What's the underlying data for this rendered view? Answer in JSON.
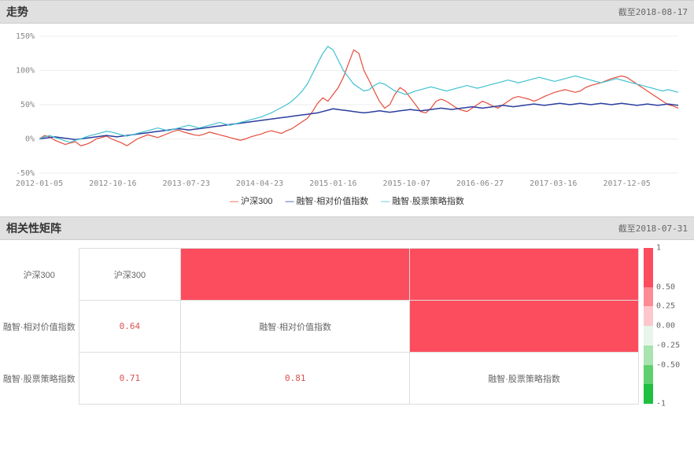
{
  "trend": {
    "title": "走势",
    "date_label": "截至2018-08-17",
    "ylim": [
      -50,
      150
    ],
    "ytick_step": 50,
    "yticks": [
      "-50%",
      "0%",
      "50%",
      "100%",
      "150%"
    ],
    "xticks": [
      "2012-01-05",
      "2012-10-16",
      "2013-07-23",
      "2014-04-23",
      "2015-01-16",
      "2015-10-07",
      "2016-06-27",
      "2017-03-16",
      "2017-12-05"
    ],
    "grid_color": "#eeeeee",
    "axis_text_color": "#888888",
    "background_color": "#ffffff",
    "series": [
      {
        "name": "沪深300",
        "color": "#e74c3c",
        "stroke_width": 1.2,
        "data": [
          0,
          5,
          3,
          -2,
          -5,
          -8,
          -6,
          -4,
          -10,
          -8,
          -5,
          0,
          2,
          4,
          0,
          -3,
          -6,
          -10,
          -5,
          0,
          3,
          6,
          4,
          2,
          5,
          8,
          11,
          13,
          10,
          8,
          6,
          5,
          7,
          10,
          8,
          6,
          4,
          2,
          0,
          -2,
          0,
          3,
          5,
          7,
          10,
          12,
          10,
          8,
          12,
          15,
          20,
          25,
          30,
          40,
          52,
          60,
          55,
          65,
          75,
          90,
          110,
          130,
          125,
          100,
          85,
          70,
          55,
          45,
          50,
          65,
          75,
          70,
          60,
          50,
          40,
          38,
          45,
          55,
          58,
          55,
          50,
          45,
          42,
          40,
          45,
          50,
          55,
          52,
          48,
          45,
          50,
          55,
          60,
          62,
          60,
          58,
          55,
          58,
          62,
          65,
          68,
          70,
          72,
          70,
          68,
          70,
          75,
          78,
          80,
          82,
          85,
          88,
          90,
          92,
          90,
          85,
          80,
          75,
          70,
          65,
          60,
          55,
          50,
          48,
          45
        ]
      },
      {
        "name": "融智·相对价值指数",
        "color": "#2c3e9e",
        "stroke_width": 1.5,
        "data": [
          0,
          1,
          2,
          3,
          2,
          1,
          0,
          -1,
          0,
          1,
          2,
          3,
          4,
          5,
          4,
          3,
          4,
          5,
          6,
          7,
          8,
          9,
          10,
          11,
          12,
          13,
          14,
          15,
          14,
          13,
          14,
          15,
          16,
          17,
          18,
          19,
          20,
          21,
          22,
          23,
          24,
          25,
          26,
          27,
          28,
          29,
          30,
          31,
          32,
          33,
          34,
          35,
          36,
          37,
          38,
          40,
          42,
          44,
          43,
          42,
          41,
          40,
          39,
          38,
          39,
          40,
          41,
          40,
          39,
          40,
          41,
          42,
          43,
          42,
          41,
          42,
          43,
          44,
          45,
          44,
          43,
          44,
          45,
          46,
          47,
          46,
          45,
          46,
          47,
          48,
          49,
          48,
          47,
          48,
          49,
          50,
          51,
          50,
          49,
          50,
          51,
          52,
          51,
          50,
          51,
          52,
          51,
          50,
          51,
          52,
          51,
          50,
          51,
          52,
          51,
          50,
          49,
          50,
          51,
          50,
          49,
          50,
          51,
          50,
          49
        ]
      },
      {
        "name": "融智·股票策略指数",
        "color": "#3fc1d0",
        "stroke_width": 1.2,
        "data": [
          0,
          3,
          5,
          2,
          0,
          -3,
          -5,
          -2,
          0,
          3,
          5,
          7,
          9,
          11,
          10,
          8,
          6,
          4,
          6,
          8,
          10,
          12,
          14,
          16,
          14,
          12,
          14,
          16,
          18,
          20,
          18,
          16,
          18,
          20,
          22,
          24,
          22,
          20,
          22,
          24,
          26,
          28,
          30,
          32,
          35,
          38,
          42,
          46,
          50,
          55,
          62,
          70,
          80,
          95,
          110,
          125,
          135,
          130,
          115,
          100,
          90,
          80,
          75,
          70,
          72,
          78,
          82,
          80,
          75,
          70,
          68,
          65,
          67,
          70,
          72,
          74,
          76,
          74,
          72,
          70,
          72,
          74,
          76,
          78,
          76,
          74,
          76,
          78,
          80,
          82,
          84,
          86,
          84,
          82,
          84,
          86,
          88,
          90,
          88,
          86,
          84,
          86,
          88,
          90,
          92,
          90,
          88,
          86,
          84,
          82,
          84,
          86,
          88,
          86,
          84,
          82,
          80,
          78,
          76,
          74,
          72,
          70,
          72,
          70,
          68
        ]
      }
    ]
  },
  "matrix": {
    "title": "相关性矩阵",
    "date_label": "截至2018-07-31",
    "labels": [
      "沪深300",
      "融智·相对价值指数",
      "融智·股票策略指数"
    ],
    "cells": [
      [
        {
          "type": "diag",
          "text": "沪深300"
        },
        {
          "type": "fill",
          "value": 1.0,
          "color": "#fc4d5e"
        },
        {
          "type": "fill",
          "value": 1.0,
          "color": "#fc4d5e"
        }
      ],
      [
        {
          "type": "value",
          "text": "0.64"
        },
        {
          "type": "diag",
          "text": "融智·相对价值指数"
        },
        {
          "type": "fill",
          "value": 1.0,
          "color": "#fc4d5e"
        }
      ],
      [
        {
          "type": "value",
          "text": "0.71"
        },
        {
          "type": "value",
          "text": "0.81"
        },
        {
          "type": "diag",
          "text": "融智·股票策略指数"
        }
      ]
    ],
    "colorbar": {
      "ticks": [
        "1",
        "0.50",
        "0.25",
        "0.00",
        "-0.25",
        "-0.50",
        "-1"
      ],
      "segments": [
        {
          "color": "#fc4d5e",
          "frac": 0.25
        },
        {
          "color": "#fc8b95",
          "frac": 0.125
        },
        {
          "color": "#fdc7cc",
          "frac": 0.125
        },
        {
          "color": "#e8f5ea",
          "frac": 0.125
        },
        {
          "color": "#a8e3b0",
          "frac": 0.125
        },
        {
          "color": "#5fcf6f",
          "frac": 0.125
        },
        {
          "color": "#1fbf3f",
          "frac": 0.125
        }
      ]
    }
  }
}
